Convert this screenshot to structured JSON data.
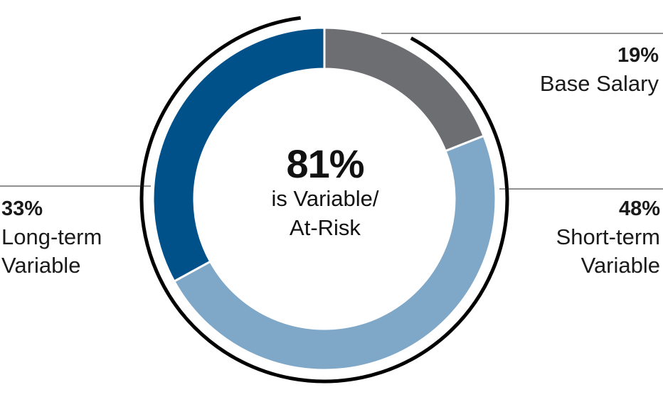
{
  "chart_data": {
    "type": "pie",
    "title": "",
    "center": {
      "value": "81%",
      "line1": "is Variable/",
      "line2": "At-Risk"
    },
    "series": [
      {
        "name": "Base Salary",
        "value": 19,
        "label_value": "19%",
        "label_name": "Base Salary",
        "color": "#6d6e72"
      },
      {
        "name": "Short-term Variable",
        "value": 48,
        "label_value": "48%",
        "label_name": "Short-term\nVariable",
        "color": "#7fa7c7"
      },
      {
        "name": "Long-term Variable",
        "value": 33,
        "label_value": "33%",
        "label_name": "Long-term\nVariable",
        "color": "#00508a"
      }
    ],
    "variable_bracket_percent": 81
  }
}
